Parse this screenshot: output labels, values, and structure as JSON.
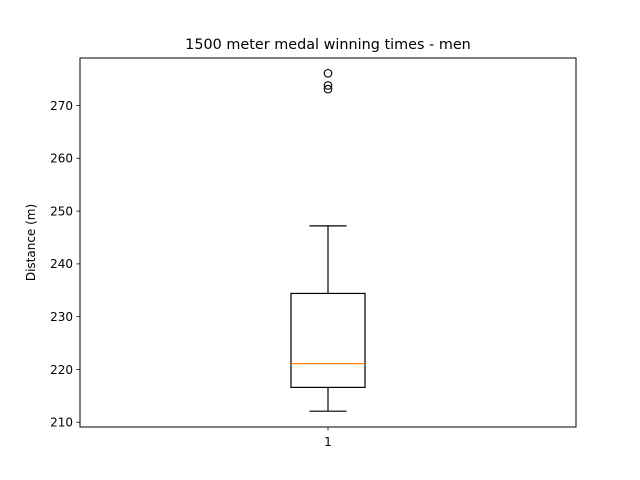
{
  "chart_data": {
    "type": "box",
    "title": "1500 meter medal winning times - men",
    "xlabel": "",
    "ylabel": "Distance (m)",
    "categories": [
      "1"
    ],
    "ylim": [
      209.1,
      279.0
    ],
    "yticks": [
      210,
      220,
      230,
      240,
      250,
      260,
      270
    ],
    "grid": false,
    "boxes": [
      {
        "label": "1",
        "whisker_low": 212.1,
        "q1": 216.6,
        "median": 221.1,
        "q3": 234.4,
        "whisker_high": 247.2,
        "fliers": [
          273.1,
          273.8,
          276.1
        ]
      }
    ],
    "colors": {
      "box": "#000000",
      "median": "#ff7f0e",
      "flier": "#000000"
    }
  }
}
